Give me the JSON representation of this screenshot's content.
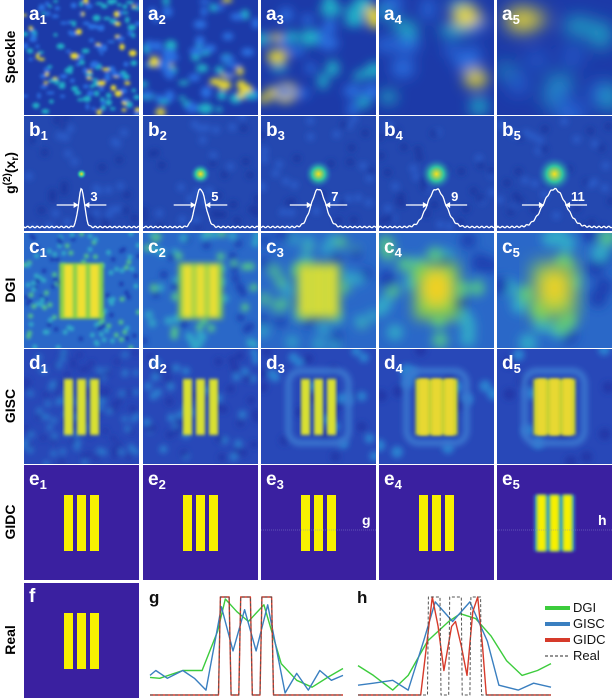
{
  "row_labels": [
    {
      "id": "speckle",
      "text": "Speckle"
    },
    {
      "id": "g2",
      "parts": [
        "g",
        "(2)",
        "(x",
        "r",
        ")"
      ]
    },
    {
      "id": "dgi",
      "text": "DGI"
    },
    {
      "id": "gisc",
      "text": "GISC"
    },
    {
      "id": "gidc",
      "text": "GIDC"
    },
    {
      "id": "real",
      "text": "Real"
    }
  ],
  "rows": [
    {
      "letter": "a",
      "subs": [
        "1",
        "2",
        "3",
        "4",
        "5"
      ],
      "kind": "speckle"
    },
    {
      "letter": "b",
      "subs": [
        "1",
        "2",
        "3",
        "4",
        "5"
      ],
      "kind": "g2",
      "widths": [
        "3",
        "5",
        "7",
        "9",
        "11"
      ]
    },
    {
      "letter": "c",
      "subs": [
        "1",
        "2",
        "3",
        "4",
        "5"
      ],
      "kind": "dgi"
    },
    {
      "letter": "d",
      "subs": [
        "1",
        "2",
        "3",
        "4",
        "5"
      ],
      "kind": "gisc"
    },
    {
      "letter": "e",
      "subs": [
        "1",
        "2",
        "3",
        "4",
        "5"
      ],
      "kind": "gidc",
      "line_labels": {
        "3": "g",
        "5": "h"
      }
    }
  ],
  "real_panel": {
    "label": "f"
  },
  "colors": {
    "object_bg": "#3a20a0",
    "object_bar": "#f7f000",
    "DGI": "#3ccc3c",
    "GISC": "#3a7fc0",
    "GIDC": "#d63a2a",
    "Real": "#555555"
  },
  "chart_data": [
    {
      "type": "line",
      "title": "g",
      "xlim": [
        0,
        100
      ],
      "ylim": [
        0,
        1
      ],
      "series": [
        {
          "name": "DGI",
          "points": [
            [
              0,
              0.18
            ],
            [
              5,
              0.17
            ],
            [
              17,
              0.25
            ],
            [
              27,
              0.25
            ],
            [
              35,
              0.65
            ],
            [
              39,
              0.98
            ],
            [
              45,
              0.85
            ],
            [
              51,
              0.75
            ],
            [
              59,
              0.92
            ],
            [
              68,
              0.32
            ],
            [
              76,
              0.15
            ],
            [
              84,
              0.08
            ],
            [
              92,
              0.18
            ],
            [
              100,
              0.27
            ]
          ]
        },
        {
          "name": "GISC",
          "points": [
            [
              0,
              0.2
            ],
            [
              3,
              0.25
            ],
            [
              9,
              0.17
            ],
            [
              17,
              0.25
            ],
            [
              23,
              0.17
            ],
            [
              29,
              0.05
            ],
            [
              37,
              0.9
            ],
            [
              43,
              0.45
            ],
            [
              49,
              0.87
            ],
            [
              55,
              0.45
            ],
            [
              61,
              0.92
            ],
            [
              70,
              0.02
            ],
            [
              76,
              0.22
            ],
            [
              82,
              0.05
            ],
            [
              88,
              0.25
            ],
            [
              94,
              0.15
            ],
            [
              100,
              0.2
            ]
          ]
        },
        {
          "name": "GIDC",
          "points": [
            [
              0,
              0
            ],
            [
              35.5,
              0
            ],
            [
              36.5,
              1
            ],
            [
              41,
              1
            ],
            [
              42,
              0
            ],
            [
              46,
              0
            ],
            [
              47,
              1
            ],
            [
              52,
              1
            ],
            [
              53,
              0
            ],
            [
              57,
              0
            ],
            [
              58,
              1
            ],
            [
              63,
              1
            ],
            [
              64,
              0
            ],
            [
              100,
              0
            ]
          ]
        },
        {
          "name": "Real",
          "points": [
            [
              0,
              0
            ],
            [
              35.5,
              0
            ],
            [
              36.5,
              1
            ],
            [
              41,
              1
            ],
            [
              42,
              0
            ],
            [
              46,
              0
            ],
            [
              47,
              1
            ],
            [
              52,
              1
            ],
            [
              53,
              0
            ],
            [
              57,
              0
            ],
            [
              58,
              1
            ],
            [
              63,
              1
            ],
            [
              64,
              0
            ],
            [
              100,
              0
            ]
          ]
        }
      ]
    },
    {
      "type": "line",
      "title": "h",
      "xlim": [
        0,
        100
      ],
      "ylim": [
        0,
        1
      ],
      "series": [
        {
          "name": "DGI",
          "points": [
            [
              0,
              0.3
            ],
            [
              8,
              0.2
            ],
            [
              18,
              0.05
            ],
            [
              26,
              0.2
            ],
            [
              36,
              0.55
            ],
            [
              47,
              0.75
            ],
            [
              53,
              0.83
            ],
            [
              61,
              0.78
            ],
            [
              69,
              0.6
            ],
            [
              77,
              0.35
            ],
            [
              85,
              0.2
            ],
            [
              93,
              0.25
            ],
            [
              100,
              0.32
            ]
          ]
        },
        {
          "name": "GISC",
          "points": [
            [
              0,
              0.1
            ],
            [
              8,
              0.12
            ],
            [
              18,
              0.15
            ],
            [
              26,
              0.05
            ],
            [
              34,
              0.55
            ],
            [
              40,
              0.95
            ],
            [
              49,
              0.75
            ],
            [
              58,
              0.95
            ],
            [
              67,
              0.55
            ],
            [
              73,
              0.1
            ],
            [
              83,
              0.05
            ],
            [
              91,
              0.12
            ],
            [
              100,
              0.08
            ]
          ]
        },
        {
          "name": "GIDC",
          "points": [
            [
              0,
              0
            ],
            [
              32.5,
              0
            ],
            [
              35.5,
              0.5
            ],
            [
              38.5,
              1
            ],
            [
              41.5,
              0.7
            ],
            [
              44.5,
              0.25
            ],
            [
              48.5,
              0.7
            ],
            [
              50.5,
              0.75
            ],
            [
              53.5,
              0.5
            ],
            [
              56.5,
              0.2
            ],
            [
              59.5,
              0.85
            ],
            [
              62,
              1
            ],
            [
              64.5,
              0.5
            ],
            [
              66.5,
              0
            ],
            [
              100,
              0
            ]
          ]
        },
        {
          "name": "Real",
          "points": [
            [
              0,
              0
            ],
            [
              36,
              0
            ],
            [
              36.5,
              1
            ],
            [
              42.5,
              1
            ],
            [
              43,
              0
            ],
            [
              47,
              0
            ],
            [
              47.5,
              1
            ],
            [
              53.5,
              1
            ],
            [
              54,
              0
            ],
            [
              58,
              0
            ],
            [
              58.5,
              1
            ],
            [
              63.5,
              1
            ],
            [
              64,
              0
            ],
            [
              100,
              0
            ]
          ]
        }
      ]
    }
  ]
}
